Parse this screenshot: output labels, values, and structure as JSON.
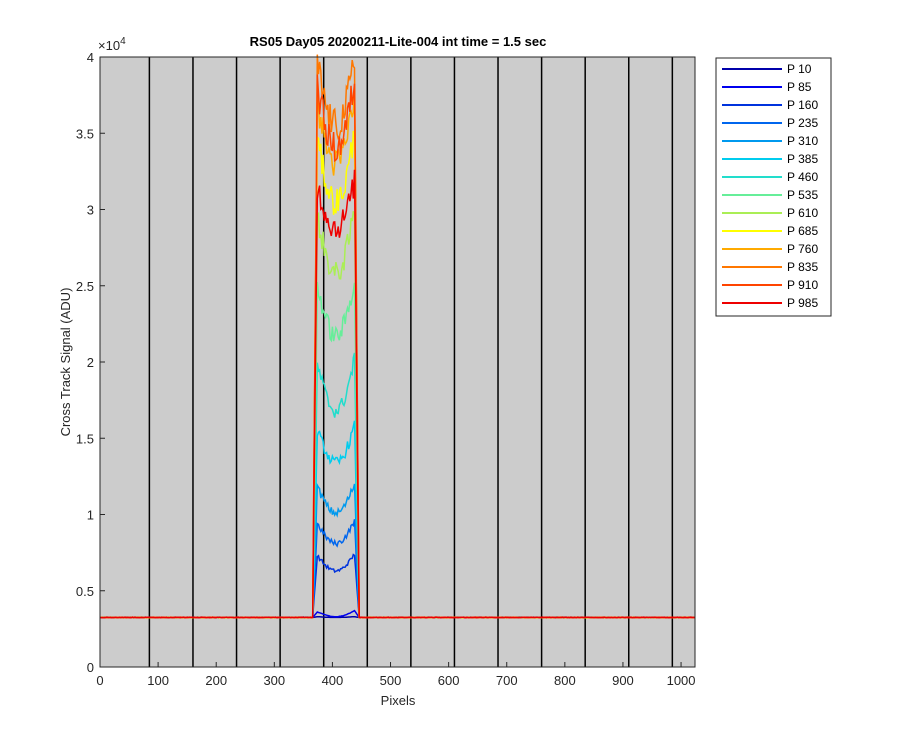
{
  "chart_data": {
    "type": "line",
    "title": "RS05 Day05 20200211-Lite-004 int time = 1.5 sec",
    "xlabel": "Pixels",
    "ylabel": "Cross Track Signal (ADU)",
    "xlim": [
      0,
      1024
    ],
    "ylim": [
      0,
      40000
    ],
    "xticks": [
      0,
      100,
      200,
      300,
      400,
      500,
      600,
      700,
      800,
      900,
      1000
    ],
    "yticks": [
      0,
      5000,
      10000,
      15000,
      20000,
      25000,
      30000,
      35000,
      40000
    ],
    "ytick_labels": [
      "0",
      "0.5",
      "1",
      "1.5",
      "2",
      "2.5",
      "3",
      "3.5",
      "4"
    ],
    "y_exponent_label": "×10",
    "y_exponent_power": "4",
    "background": "#cccccc",
    "grid": false,
    "legend_position": "outside-top-right",
    "baseline": 3250,
    "plateau_x": [
      372,
      440
    ],
    "vertical_lines_x": [
      85,
      160,
      235,
      310,
      385,
      460,
      535,
      610,
      685,
      760,
      835,
      910,
      985
    ],
    "series": [
      {
        "name": "P 10",
        "color": "#0000aa",
        "edge_left": 3300,
        "dip": 3250,
        "edge_right": 3300
      },
      {
        "name": "P 85",
        "color": "#0000ee",
        "edge_left": 3600,
        "dip": 3300,
        "edge_right": 3700
      },
      {
        "name": "P 160",
        "color": "#0033dd",
        "edge_left": 7300,
        "dip": 6300,
        "edge_right": 7400
      },
      {
        "name": "P 235",
        "color": "#0066ee",
        "edge_left": 9400,
        "dip": 8100,
        "edge_right": 9600
      },
      {
        "name": "P 310",
        "color": "#0099ee",
        "edge_left": 11800,
        "dip": 10100,
        "edge_right": 12000
      },
      {
        "name": "P 385",
        "color": "#00ccee",
        "edge_left": 15500,
        "dip": 13400,
        "edge_right": 15800
      },
      {
        "name": "P 460",
        "color": "#22ddcc",
        "edge_left": 19800,
        "dip": 16800,
        "edge_right": 20200
      },
      {
        "name": "P 535",
        "color": "#66ee99",
        "edge_left": 25000,
        "dip": 21700,
        "edge_right": 25400
      },
      {
        "name": "P 610",
        "color": "#aaee55",
        "edge_left": 29500,
        "dip": 25800,
        "edge_right": 30000
      },
      {
        "name": "P 685",
        "color": "#ffff00",
        "edge_left": 34500,
        "dip": 30500,
        "edge_right": 35000
      },
      {
        "name": "P 760",
        "color": "#ffaa00",
        "edge_left": 37000,
        "dip": 33000,
        "edge_right": 37500
      },
      {
        "name": "P 835",
        "color": "#ff7700",
        "edge_left": 39500,
        "dip": 35500,
        "edge_right": 39800
      },
      {
        "name": "P 910",
        "color": "#ff4400",
        "edge_left": 38000,
        "dip": 34000,
        "edge_right": 38500
      },
      {
        "name": "P 985",
        "color": "#ee0000",
        "edge_left": 31500,
        "dip": 28800,
        "edge_right": 31800
      }
    ]
  }
}
